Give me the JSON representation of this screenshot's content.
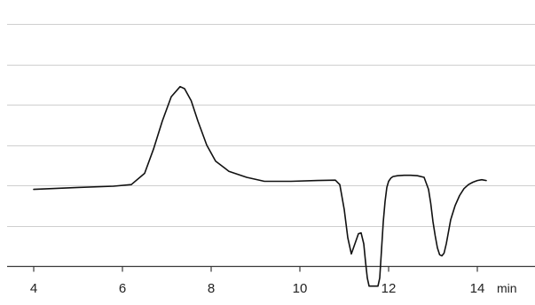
{
  "chart_data": {
    "type": "line",
    "xlabel": "min",
    "ylabel": "",
    "xlim": [
      3.4,
      15.3
    ],
    "ylim": [
      0,
      6.6
    ],
    "grid": {
      "horizontal": true,
      "vertical": false
    },
    "x_ticks": [
      4,
      6,
      8,
      10,
      12,
      14
    ],
    "y_gridlines": [
      1,
      2,
      3,
      4,
      5,
      6
    ],
    "series": [
      {
        "color": "#111111",
        "x": [
          4.0,
          5.0,
          5.8,
          6.2,
          6.5,
          6.7,
          6.9,
          7.1,
          7.3,
          7.4,
          7.55,
          7.7,
          7.9,
          8.1,
          8.4,
          8.8,
          9.2,
          9.8,
          10.4,
          10.8,
          10.9,
          11.0,
          11.08,
          11.16,
          11.24,
          11.32,
          11.38,
          11.44,
          11.48,
          11.52,
          11.56,
          11.6,
          11.64,
          11.68,
          11.72,
          11.76,
          11.8,
          11.84,
          11.88,
          11.92,
          11.96,
          12.0,
          12.05,
          12.1,
          12.2,
          12.35,
          12.5,
          12.65,
          12.8,
          12.9,
          12.95,
          13.0,
          13.05,
          13.1,
          13.15,
          13.2,
          13.25,
          13.3,
          13.35,
          13.4,
          13.5,
          13.6,
          13.7,
          13.8,
          13.9,
          14.0,
          14.1,
          14.2
        ],
        "y": [
          1.9,
          1.95,
          1.98,
          2.02,
          2.3,
          2.9,
          3.6,
          4.2,
          4.45,
          4.4,
          4.1,
          3.6,
          3.0,
          2.6,
          2.35,
          2.2,
          2.1,
          2.1,
          2.12,
          2.13,
          2.02,
          1.4,
          0.7,
          0.3,
          0.55,
          0.8,
          0.82,
          0.55,
          0.1,
          -0.3,
          -0.5,
          -0.5,
          -0.5,
          -0.5,
          -0.5,
          -0.5,
          -0.3,
          0.4,
          1.1,
          1.6,
          1.95,
          2.1,
          2.18,
          2.22,
          2.24,
          2.25,
          2.25,
          2.24,
          2.2,
          1.9,
          1.55,
          1.1,
          0.75,
          0.45,
          0.28,
          0.25,
          0.32,
          0.55,
          0.85,
          1.15,
          1.5,
          1.75,
          1.92,
          2.02,
          2.08,
          2.12,
          2.14,
          2.12
        ]
      }
    ]
  }
}
